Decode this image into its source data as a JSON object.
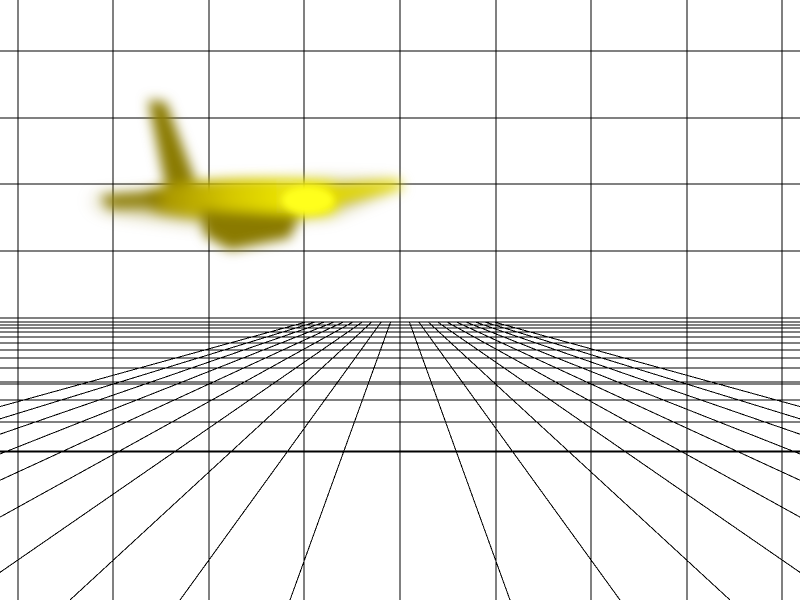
{
  "scene": {
    "background_color": "#ffffff",
    "grid_line_color": "#000000",
    "airplane": {
      "body_color": "#e2d800",
      "highlight_color": "#ffff1a",
      "shadow_color": "#8a7a00",
      "motion": "blurred"
    }
  }
}
